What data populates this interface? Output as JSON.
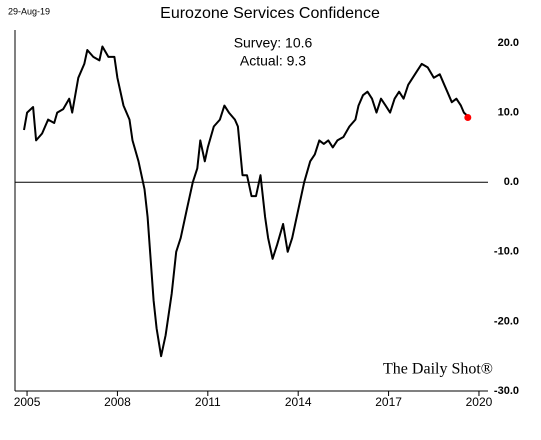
{
  "chart_data": {
    "type": "line",
    "title": "Eurozone Services Confidence",
    "date": "29-Aug-19",
    "annotations": [
      "Survey: 10.6",
      "Actual:  9.3"
    ],
    "watermark": "The Daily Shot®",
    "xlim": [
      2004.6,
      2020.3
    ],
    "xticks": [
      2005,
      2008,
      2011,
      2014,
      2017,
      2020
    ],
    "ylim": [
      -30,
      20
    ],
    "yticks": [
      {
        "value": 20,
        "label": "20.0"
      },
      {
        "value": 10,
        "label": "10.0"
      },
      {
        "value": 0,
        "label": "0.0"
      },
      {
        "value": -10,
        "label": "-10.0"
      },
      {
        "value": -20,
        "label": "-20.0"
      },
      {
        "value": -30,
        "label": "-30.0"
      }
    ],
    "zero_line": true,
    "series": [
      {
        "name": "Eurozone Services Confidence",
        "color": "#000000",
        "x": [
          2004.9,
          2005.0,
          2005.2,
          2005.3,
          2005.5,
          2005.7,
          2005.9,
          2006.0,
          2006.2,
          2006.4,
          2006.5,
          2006.7,
          2006.9,
          2007.0,
          2007.2,
          2007.4,
          2007.5,
          2007.7,
          2007.9,
          2008.0,
          2008.2,
          2008.4,
          2008.5,
          2008.7,
          2008.9,
          2009.0,
          2009.2,
          2009.3,
          2009.45,
          2009.6,
          2009.8,
          2009.95,
          2010.1,
          2010.3,
          2010.5,
          2010.65,
          2010.75,
          2010.9,
          2011.0,
          2011.2,
          2011.4,
          2011.55,
          2011.7,
          2011.9,
          2012.0,
          2012.15,
          2012.3,
          2012.45,
          2012.6,
          2012.75,
          2012.9,
          2013.0,
          2013.15,
          2013.3,
          2013.5,
          2013.65,
          2013.8,
          2014.0,
          2014.2,
          2014.4,
          2014.55,
          2014.7,
          2014.85,
          2015.0,
          2015.15,
          2015.3,
          2015.5,
          2015.7,
          2015.9,
          2016.0,
          2016.15,
          2016.3,
          2016.45,
          2016.6,
          2016.75,
          2016.9,
          2017.05,
          2017.2,
          2017.35,
          2017.5,
          2017.65,
          2017.8,
          2017.95,
          2018.1,
          2018.3,
          2018.5,
          2018.7,
          2018.85,
          2018.95,
          2019.1,
          2019.25,
          2019.4,
          2019.5,
          2019.6
        ],
        "values": [
          7.5,
          10,
          10.8,
          6,
          7,
          9,
          8.5,
          10,
          10.5,
          12,
          10,
          15,
          17,
          19,
          18,
          17.5,
          19.5,
          18,
          18,
          15,
          11,
          9,
          6,
          3,
          -1,
          -5,
          -17,
          -21,
          -25,
          -22,
          -16,
          -10,
          -8,
          -4,
          0,
          2,
          6,
          3,
          5,
          8,
          9,
          11,
          10,
          9,
          8,
          1,
          1,
          -2,
          -2,
          1,
          -5,
          -8,
          -11,
          -9,
          -6,
          -10,
          -8,
          -4,
          0,
          3,
          4,
          6,
          5.5,
          6,
          5,
          6,
          6.5,
          8,
          9,
          11,
          12.5,
          13,
          12,
          10,
          12,
          11,
          10,
          12,
          13,
          12,
          14,
          15,
          16,
          17,
          16.5,
          15,
          15.5,
          14,
          13,
          11.5,
          12,
          11,
          10,
          9.6
        ]
      },
      {
        "name": "Actual",
        "color": "#ff0000",
        "x": [
          2019.63
        ],
        "values": [
          9.3
        ]
      }
    ]
  }
}
